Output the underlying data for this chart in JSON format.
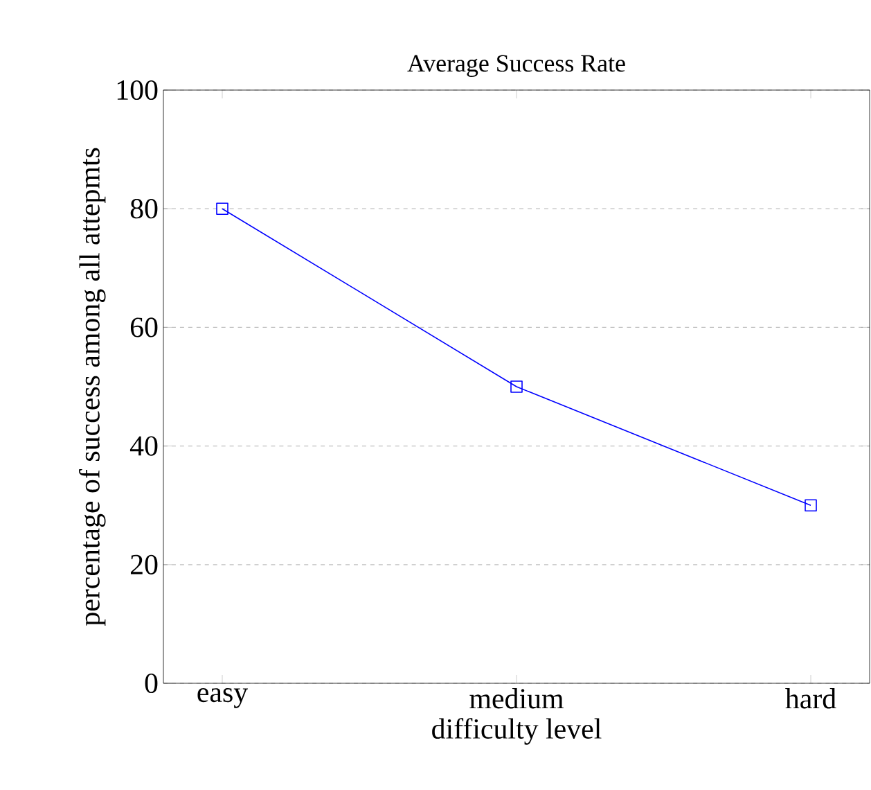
{
  "chart_data": {
    "type": "line",
    "title": "Average Success Rate",
    "xlabel": "difficulty level",
    "ylabel": "percentage of success among all attepmts",
    "categories": [
      "easy",
      "medium",
      "hard"
    ],
    "series": [
      {
        "color": "#0000ff",
        "values": [
          80,
          50,
          30
        ]
      }
    ],
    "ylim": [
      0,
      100
    ],
    "yticks": [
      0,
      20,
      40,
      60,
      80,
      100
    ],
    "grid": "y",
    "marker": "square",
    "line_style": "solid"
  }
}
